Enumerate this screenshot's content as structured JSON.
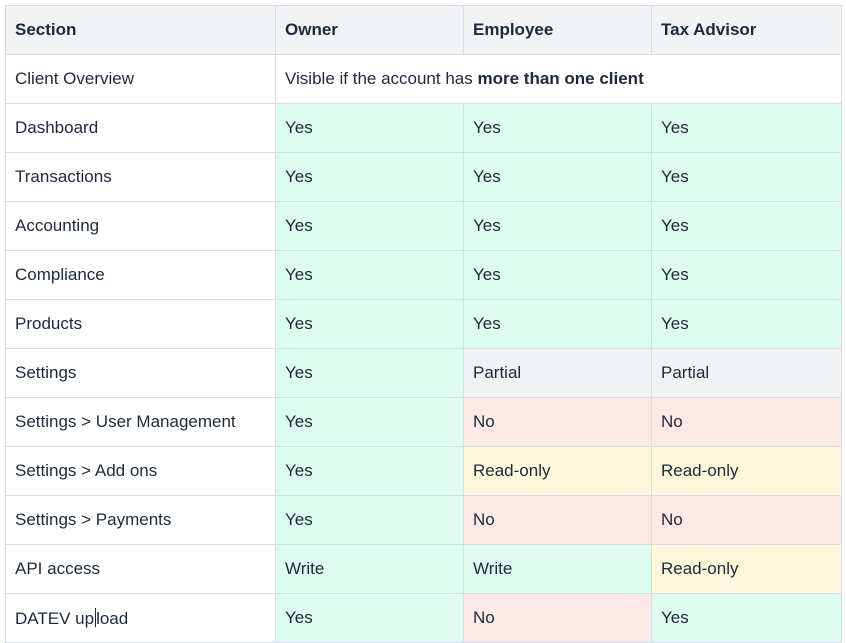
{
  "table": {
    "headers": [
      "Section",
      "Owner",
      "Employee",
      "Tax Advisor"
    ],
    "client_overview": {
      "section": "Client Overview",
      "text_prefix": "Visible if the account has ",
      "text_bold": "more than one client"
    },
    "rows": [
      {
        "section": "Dashboard",
        "owner": "Yes",
        "employee": "Yes",
        "tax_advisor": "Yes"
      },
      {
        "section": "Transactions",
        "owner": "Yes",
        "employee": "Yes",
        "tax_advisor": "Yes"
      },
      {
        "section": "Accounting",
        "owner": "Yes",
        "employee": "Yes",
        "tax_advisor": "Yes"
      },
      {
        "section": "Compliance",
        "owner": "Yes",
        "employee": "Yes",
        "tax_advisor": "Yes"
      },
      {
        "section": "Products",
        "owner": "Yes",
        "employee": "Yes",
        "tax_advisor": "Yes"
      },
      {
        "section": "Settings",
        "owner": "Yes",
        "employee": "Partial",
        "tax_advisor": "Partial"
      },
      {
        "section": "Settings > User Management",
        "owner": "Yes",
        "employee": "No",
        "tax_advisor": "No"
      },
      {
        "section": "Settings > Add ons",
        "owner": "Yes",
        "employee": "Read-only",
        "tax_advisor": "Read-only"
      },
      {
        "section": "Settings > Payments",
        "owner": "Yes",
        "employee": "No",
        "tax_advisor": "No"
      },
      {
        "section": "API access",
        "owner": "Write",
        "employee": "Write",
        "tax_advisor": "Read-only"
      }
    ],
    "last_row": {
      "section_before_cursor": "DATEV up",
      "section_after_cursor": "load",
      "owner": "Yes",
      "employee": "No",
      "tax_advisor": "Yes"
    }
  },
  "colors": {
    "yes": "#dcfcef",
    "no": "#fde8e8",
    "partial": "#f1f2f4",
    "read_only": "#fef7dc",
    "header": "#f1f3f5",
    "border": "#d8dde3"
  }
}
